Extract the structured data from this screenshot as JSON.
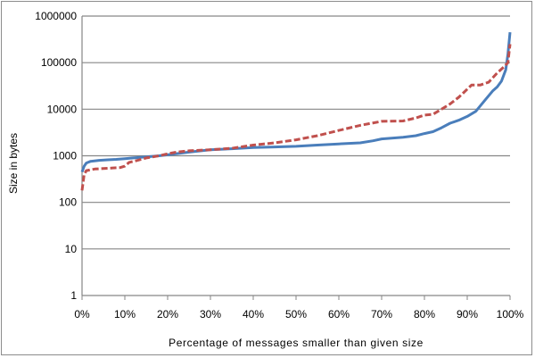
{
  "chart_data": {
    "type": "line",
    "xlabel": "Percentage of messages smaller than given size",
    "ylabel": "Size in bytes",
    "x_scale": "linear",
    "y_scale": "log",
    "xlim": [
      0,
      100
    ],
    "ylim": [
      1,
      1000000
    ],
    "x_ticks": [
      {
        "value": 0,
        "label": "0%"
      },
      {
        "value": 10,
        "label": "10%"
      },
      {
        "value": 20,
        "label": "20%"
      },
      {
        "value": 30,
        "label": "30%"
      },
      {
        "value": 40,
        "label": "40%"
      },
      {
        "value": 50,
        "label": "50%"
      },
      {
        "value": 60,
        "label": "60%"
      },
      {
        "value": 70,
        "label": "70%"
      },
      {
        "value": 80,
        "label": "80%"
      },
      {
        "value": 90,
        "label": "90%"
      },
      {
        "value": 100,
        "label": "100%"
      }
    ],
    "y_ticks": [
      {
        "value": 1,
        "label": "1"
      },
      {
        "value": 10,
        "label": "10"
      },
      {
        "value": 100,
        "label": "100"
      },
      {
        "value": 1000,
        "label": "1000"
      },
      {
        "value": 10000,
        "label": "10000"
      },
      {
        "value": 100000,
        "label": "100000"
      },
      {
        "value": 1000000,
        "label": "1000000"
      }
    ],
    "grid": "horizontal",
    "legend": "none",
    "series": [
      {
        "color": "#4a7ebb",
        "style": "solid",
        "points": [
          [
            0,
            450
          ],
          [
            0.5,
            600
          ],
          [
            1,
            700
          ],
          [
            2,
            760
          ],
          [
            4,
            800
          ],
          [
            6,
            820
          ],
          [
            8,
            840
          ],
          [
            10,
            870
          ],
          [
            12,
            900
          ],
          [
            15,
            950
          ],
          [
            18,
            1000
          ],
          [
            20,
            1050
          ],
          [
            25,
            1200
          ],
          [
            30,
            1350
          ],
          [
            35,
            1420
          ],
          [
            40,
            1500
          ],
          [
            45,
            1550
          ],
          [
            50,
            1600
          ],
          [
            55,
            1700
          ],
          [
            60,
            1800
          ],
          [
            65,
            1900
          ],
          [
            68,
            2100
          ],
          [
            70,
            2300
          ],
          [
            75,
            2500
          ],
          [
            78,
            2700
          ],
          [
            80,
            3000
          ],
          [
            82,
            3300
          ],
          [
            84,
            4000
          ],
          [
            86,
            5000
          ],
          [
            88,
            5800
          ],
          [
            90,
            7000
          ],
          [
            92,
            9000
          ],
          [
            94,
            15000
          ],
          [
            96,
            25000
          ],
          [
            97,
            30000
          ],
          [
            98,
            40000
          ],
          [
            99,
            70000
          ],
          [
            99.5,
            150000
          ],
          [
            100,
            450000
          ]
        ]
      },
      {
        "color": "#c0504d",
        "style": "dashed",
        "points": [
          [
            0,
            180
          ],
          [
            0.5,
            400
          ],
          [
            1,
            480
          ],
          [
            3,
            520
          ],
          [
            6,
            540
          ],
          [
            9,
            560
          ],
          [
            10,
            600
          ],
          [
            11,
            720
          ],
          [
            13,
            800
          ],
          [
            15,
            900
          ],
          [
            18,
            1000
          ],
          [
            20,
            1100
          ],
          [
            22,
            1200
          ],
          [
            25,
            1280
          ],
          [
            30,
            1350
          ],
          [
            35,
            1450
          ],
          [
            40,
            1700
          ],
          [
            45,
            1900
          ],
          [
            50,
            2200
          ],
          [
            55,
            2700
          ],
          [
            60,
            3500
          ],
          [
            65,
            4500
          ],
          [
            70,
            5500
          ],
          [
            75,
            5600
          ],
          [
            78,
            6500
          ],
          [
            80,
            7500
          ],
          [
            82,
            7800
          ],
          [
            84,
            10000
          ],
          [
            86,
            13000
          ],
          [
            88,
            18000
          ],
          [
            89,
            22000
          ],
          [
            91,
            33000
          ],
          [
            93,
            33000
          ],
          [
            95,
            38000
          ],
          [
            97,
            60000
          ],
          [
            98.5,
            80000
          ],
          [
            99.5,
            100000
          ],
          [
            100,
            250000
          ]
        ]
      }
    ]
  }
}
